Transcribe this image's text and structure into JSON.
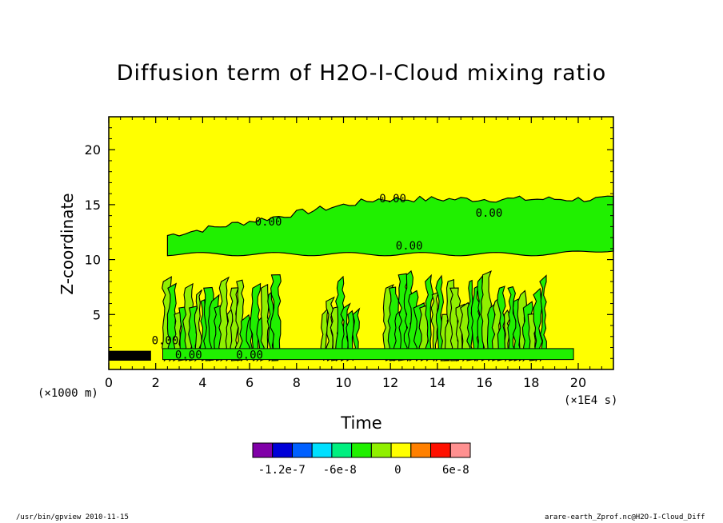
{
  "chart_data": {
    "type": "heatmap",
    "title": "Diffusion term of H2O-I-Cloud mixing ratio",
    "xlabel": "Time",
    "ylabel": "Z-coordinate",
    "x_unit": "(×1E4 s)",
    "y_unit": "(×1000 m)",
    "xlim": [
      0,
      21.5
    ],
    "ylim": [
      0,
      23
    ],
    "xticks": [
      "0",
      "2",
      "4",
      "6",
      "8",
      "10",
      "12",
      "14",
      "16",
      "18",
      "20"
    ],
    "yticks": [
      "5",
      "10",
      "15",
      "20"
    ],
    "contour_labels": [
      "0.00",
      "0.00",
      "0.00",
      "0.00",
      "0.00",
      "0.00",
      "0.00"
    ],
    "background_value": 0,
    "colorbar": {
      "colors": [
        "#8000a8",
        "#0000d8",
        "#0060ff",
        "#00e0ff",
        "#00f080",
        "#20f000",
        "#90f000",
        "#ffff00",
        "#ff8000",
        "#ff1000",
        "#ff9090"
      ],
      "tick_labels": [
        "-1.2e-7",
        "-6e-8",
        "0",
        "6e-8"
      ],
      "tick_values": [
        -1.2e-07,
        -6e-08,
        0,
        6e-08
      ]
    },
    "regions": {
      "upper_band_z": [
        10.5,
        15.5
      ],
      "convective_columns_time": [
        [
          2.5,
          7.3
        ],
        [
          9.2,
          10.7
        ],
        [
          11.9,
          18.7
        ]
      ],
      "convective_top_z": 9
    }
  },
  "footer": {
    "left": "/usr/bin/gpview  2010-11-15",
    "right": "arare-earth_Zprof.nc@H2O-I-Cloud_Diff"
  }
}
